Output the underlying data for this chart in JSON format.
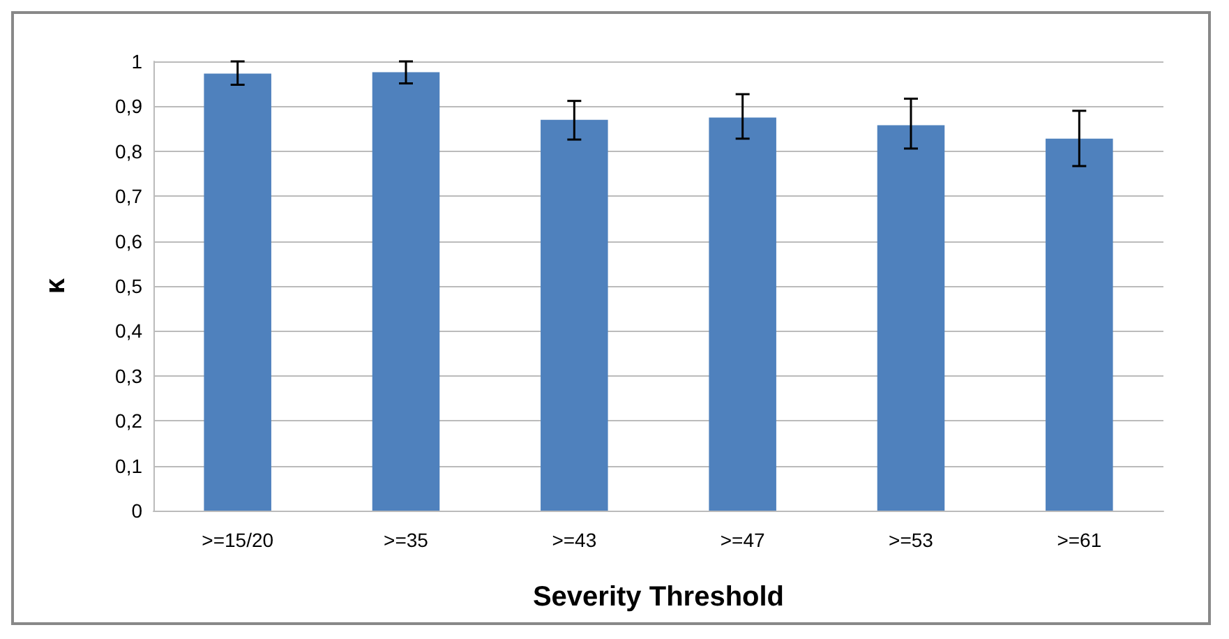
{
  "chart_data": {
    "type": "bar",
    "xlabel": "Severity Threshold",
    "ylabel": "κ",
    "categories": [
      ">=15/20",
      ">=35",
      ">=43",
      ">=47",
      ">=53",
      ">=61"
    ],
    "values": [
      0.973,
      0.976,
      0.87,
      0.875,
      0.858,
      0.828
    ],
    "errors": [
      [
        0.948,
        1.0
      ],
      [
        0.951,
        1.0
      ],
      [
        0.826,
        0.912
      ],
      [
        0.828,
        0.927
      ],
      [
        0.806,
        0.917
      ],
      [
        0.767,
        0.89
      ]
    ],
    "color": "#4f81bd",
    "ylim": [
      0,
      1
    ],
    "yticks": [
      0,
      {
        "value": 0.1,
        "label": "0,1"
      },
      {
        "value": 0.2,
        "label": "0,2"
      },
      {
        "value": 0.3,
        "label": "0,3"
      },
      {
        "value": 0.4,
        "label": "0,4"
      },
      {
        "value": 0.5,
        "label": "0,5"
      },
      {
        "value": 0.6,
        "label": "0,6"
      },
      {
        "value": 0.7,
        "label": "0,7"
      },
      {
        "value": 0.8,
        "label": "0,8"
      },
      {
        "value": 0.9,
        "label": "0,9"
      },
      1
    ],
    "grid": "y"
  }
}
